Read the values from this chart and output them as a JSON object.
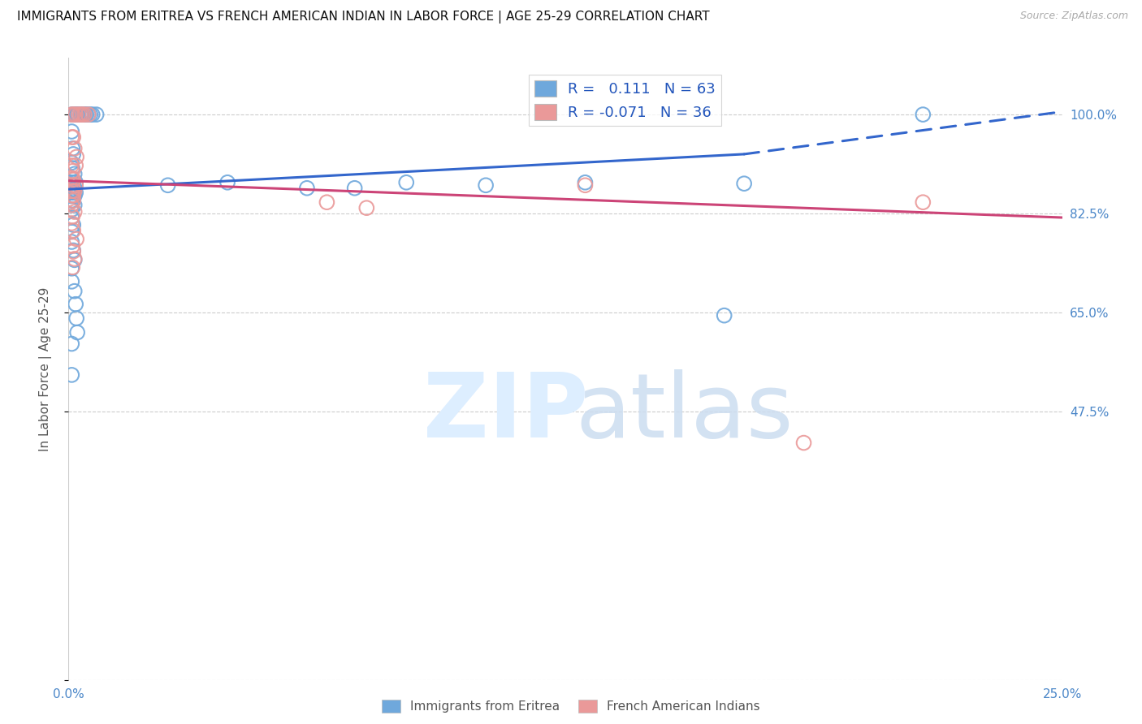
{
  "title": "IMMIGRANTS FROM ERITREA VS FRENCH AMERICAN INDIAN IN LABOR FORCE | AGE 25-29 CORRELATION CHART",
  "source": "Source: ZipAtlas.com",
  "ylabel": "In Labor Force | Age 25-29",
  "xmin": 0.0,
  "xmax": 0.25,
  "ymin": 0.0,
  "ymax": 1.1,
  "yticks": [
    0.0,
    0.475,
    0.65,
    0.825,
    1.0
  ],
  "ytick_labels": [
    "",
    "47.5%",
    "65.0%",
    "82.5%",
    "100.0%"
  ],
  "xtick_labels": [
    "0.0%",
    "25.0%"
  ],
  "xticks": [
    0.0,
    0.25
  ],
  "blue_color": "#6fa8dc",
  "pink_color": "#ea9999",
  "axis_label_color": "#4a86c8",
  "blue_scatter": [
    [
      0.0008,
      1.0
    ],
    [
      0.0012,
      1.0
    ],
    [
      0.0015,
      1.0
    ],
    [
      0.0018,
      1.0
    ],
    [
      0.002,
      1.0
    ],
    [
      0.0022,
      1.0
    ],
    [
      0.0025,
      1.0
    ],
    [
      0.003,
      1.0
    ],
    [
      0.0032,
      1.0
    ],
    [
      0.0035,
      1.0
    ],
    [
      0.0038,
      1.0
    ],
    [
      0.004,
      1.0
    ],
    [
      0.0042,
      1.0
    ],
    [
      0.0045,
      1.0
    ],
    [
      0.005,
      1.0
    ],
    [
      0.0055,
      1.0
    ],
    [
      0.006,
      1.0
    ],
    [
      0.007,
      1.0
    ],
    [
      0.0008,
      0.97
    ],
    [
      0.001,
      0.94
    ],
    [
      0.0012,
      0.93
    ],
    [
      0.0008,
      0.915
    ],
    [
      0.001,
      0.905
    ],
    [
      0.0015,
      0.895
    ],
    [
      0.0008,
      0.88
    ],
    [
      0.0012,
      0.88
    ],
    [
      0.0018,
      0.88
    ],
    [
      0.0008,
      0.875
    ],
    [
      0.0012,
      0.875
    ],
    [
      0.0008,
      0.868
    ],
    [
      0.0012,
      0.868
    ],
    [
      0.0015,
      0.868
    ],
    [
      0.0008,
      0.862
    ],
    [
      0.0012,
      0.862
    ],
    [
      0.0018,
      0.862
    ],
    [
      0.0008,
      0.856
    ],
    [
      0.0015,
      0.856
    ],
    [
      0.0008,
      0.848
    ],
    [
      0.0012,
      0.848
    ],
    [
      0.0008,
      0.84
    ],
    [
      0.0015,
      0.84
    ],
    [
      0.0008,
      0.832
    ],
    [
      0.0008,
      0.818
    ],
    [
      0.0012,
      0.805
    ],
    [
      0.0008,
      0.793
    ],
    [
      0.0008,
      0.775
    ],
    [
      0.0012,
      0.76
    ],
    [
      0.0015,
      0.743
    ],
    [
      0.0008,
      0.728
    ],
    [
      0.0008,
      0.705
    ],
    [
      0.0015,
      0.688
    ],
    [
      0.0018,
      0.665
    ],
    [
      0.002,
      0.64
    ],
    [
      0.0022,
      0.615
    ],
    [
      0.0008,
      0.595
    ],
    [
      0.0008,
      0.54
    ],
    [
      0.025,
      0.875
    ],
    [
      0.04,
      0.88
    ],
    [
      0.06,
      0.87
    ],
    [
      0.072,
      0.87
    ],
    [
      0.085,
      0.88
    ],
    [
      0.105,
      0.875
    ],
    [
      0.13,
      0.88
    ],
    [
      0.17,
      0.878
    ],
    [
      0.165,
      0.645
    ],
    [
      0.215,
      1.0
    ]
  ],
  "pink_scatter": [
    [
      0.0008,
      1.0
    ],
    [
      0.0012,
      1.0
    ],
    [
      0.0018,
      1.0
    ],
    [
      0.0025,
      1.0
    ],
    [
      0.003,
      1.0
    ],
    [
      0.0035,
      1.0
    ],
    [
      0.004,
      1.0
    ],
    [
      0.005,
      1.0
    ],
    [
      0.0008,
      0.96
    ],
    [
      0.0012,
      0.96
    ],
    [
      0.0015,
      0.94
    ],
    [
      0.002,
      0.925
    ],
    [
      0.0008,
      0.91
    ],
    [
      0.0018,
      0.91
    ],
    [
      0.001,
      0.9
    ],
    [
      0.0008,
      0.888
    ],
    [
      0.0012,
      0.885
    ],
    [
      0.001,
      0.875
    ],
    [
      0.0018,
      0.875
    ],
    [
      0.0008,
      0.865
    ],
    [
      0.0015,
      0.865
    ],
    [
      0.0008,
      0.857
    ],
    [
      0.0012,
      0.857
    ],
    [
      0.0012,
      0.848
    ],
    [
      0.0008,
      0.84
    ],
    [
      0.0015,
      0.828
    ],
    [
      0.001,
      0.82
    ],
    [
      0.0008,
      0.808
    ],
    [
      0.0012,
      0.795
    ],
    [
      0.002,
      0.78
    ],
    [
      0.001,
      0.768
    ],
    [
      0.0012,
      0.758
    ],
    [
      0.0015,
      0.745
    ],
    [
      0.001,
      0.73
    ],
    [
      0.065,
      0.845
    ],
    [
      0.075,
      0.835
    ],
    [
      0.13,
      0.875
    ],
    [
      0.215,
      0.845
    ],
    [
      0.185,
      0.42
    ]
  ],
  "blue_line_x": [
    0.0,
    0.17
  ],
  "blue_line_y": [
    0.868,
    0.93
  ],
  "blue_dashed_line_x": [
    0.17,
    0.25
  ],
  "blue_dashed_line_y": [
    0.93,
    1.005
  ],
  "pink_line_x": [
    0.0,
    0.25
  ],
  "pink_line_y": [
    0.883,
    0.818
  ]
}
